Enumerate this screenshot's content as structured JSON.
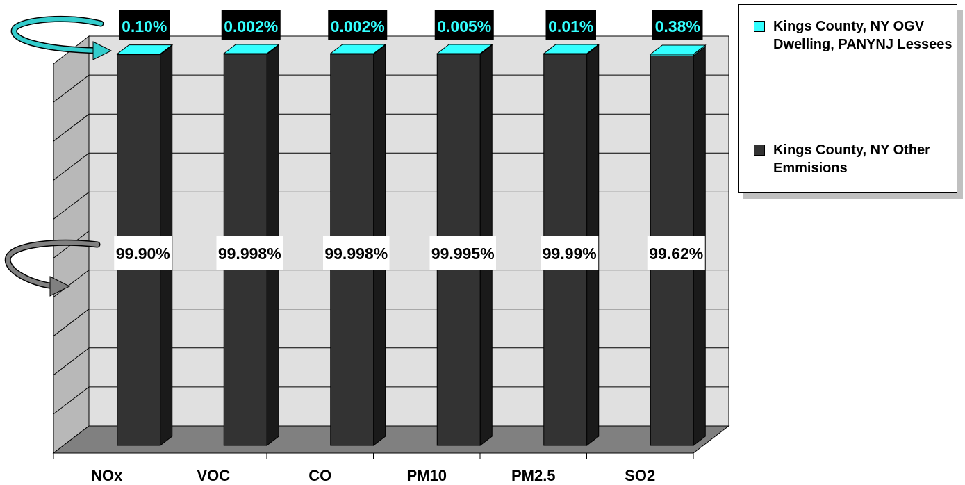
{
  "chart_data": {
    "type": "bar",
    "stacked": true,
    "percent_stacked": true,
    "three_d": true,
    "categories": [
      "NOx",
      "VOC",
      "CO",
      "PM10",
      "PM2.5",
      "SO2"
    ],
    "series": [
      {
        "name": "Kings County, NY Other Emmisions",
        "color": "#333333",
        "values": [
          99.9,
          99.998,
          99.998,
          99.995,
          99.99,
          99.62
        ],
        "labels": [
          "99.90%",
          "99.998%",
          "99.998%",
          "99.995%",
          "99.99%",
          "99.62%"
        ]
      },
      {
        "name": "Kings County, NY OGV Dwelling, PANYNJ Lessees",
        "color": "#33ffff",
        "values": [
          0.1,
          0.002,
          0.002,
          0.005,
          0.01,
          0.38
        ],
        "labels": [
          "0.10%",
          "0.002%",
          "0.002%",
          "0.005%",
          "0.01%",
          "0.38%"
        ]
      }
    ],
    "ylim": [
      0,
      100
    ],
    "grid": true,
    "legend_position": "top-right",
    "title": "",
    "xlabel": "",
    "ylabel": ""
  },
  "legend": {
    "items": [
      {
        "label": "Kings County, NY OGV Dwelling, PANYNJ Lessees",
        "color": "#33ffff"
      },
      {
        "label": "Kings County, NY Other Emmisions",
        "color": "#333333"
      }
    ]
  }
}
